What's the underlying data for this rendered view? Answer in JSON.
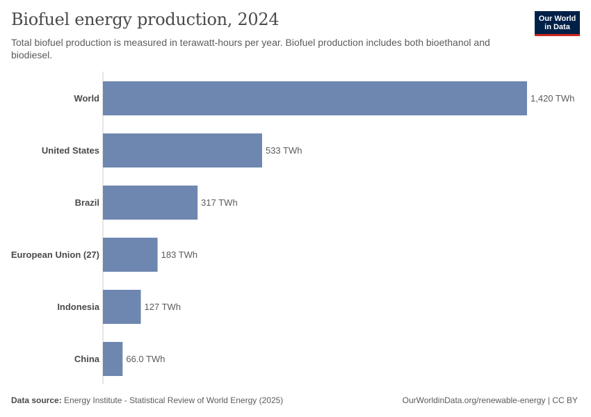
{
  "header": {
    "title": "Biofuel energy production, 2024",
    "subtitle": "Total biofuel production is measured in terawatt-hours per year. Biofuel production includes both bioethanol and biodiesel."
  },
  "logo": {
    "line1": "Our World",
    "line2": "in Data"
  },
  "footer": {
    "source_label": "Data source:",
    "source_text": "Energy Institute - Statistical Review of World Energy (2025)",
    "url_license": "OurWorldinData.org/renewable-energy | CC BY"
  },
  "colors": {
    "bar": "#6e87b0",
    "axis": "#cccccc"
  },
  "chart_data": {
    "type": "bar",
    "orientation": "horizontal",
    "categories": [
      "World",
      "United States",
      "Brazil",
      "European Union (27)",
      "Indonesia",
      "China"
    ],
    "values": [
      1420,
      533,
      317,
      183,
      127,
      66
    ],
    "value_labels": [
      "1,420 TWh",
      "533 TWh",
      "317 TWh",
      "183 TWh",
      "127 TWh",
      "66.0 TWh"
    ],
    "unit": "TWh",
    "xlim": [
      0,
      1420
    ],
    "grid": false,
    "legend": "none"
  }
}
